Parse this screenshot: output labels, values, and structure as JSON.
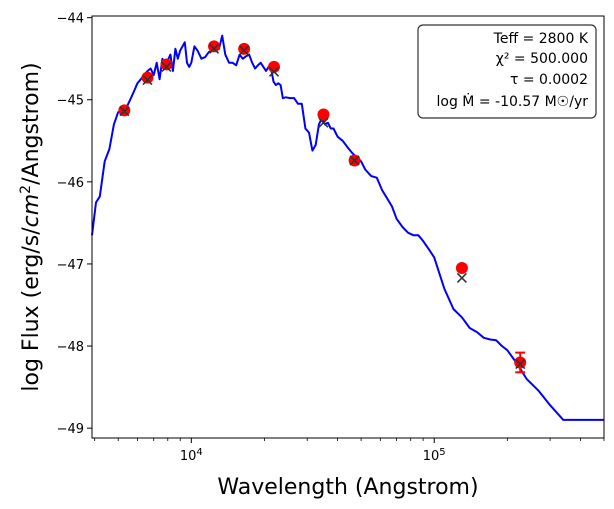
{
  "chart_data": {
    "type": "line",
    "xlabel": "Wavelength (Angstrom)",
    "ylabel": "log Flux (erg/s/cm^2/Angstrom)",
    "xscale": "log",
    "xlim": [
      3900,
      500000
    ],
    "ylim": [
      -49.12,
      -43.98
    ],
    "x_ticks": [
      {
        "value": 10000,
        "label": "10^4"
      },
      {
        "value": 100000,
        "label": "10^5"
      }
    ],
    "y_ticks": [
      -49,
      -48,
      -47,
      -46,
      -45,
      -44
    ],
    "annotation": {
      "teff": "Teff = 2800 K",
      "chi2": "χ² = 500.000",
      "tau": "τ = 0.0002",
      "mdot": "log Ṁ = -10.57 M☉/yr"
    },
    "series": [
      {
        "name": "model spectrum",
        "kind": "line",
        "color": "#0000ff",
        "x": [
          3900,
          4050,
          4200,
          4400,
          4600,
          4800,
          5000,
          5200,
          5400,
          5600,
          5800,
          6000,
          6200,
          6400,
          6600,
          6800,
          7000,
          7200,
          7400,
          7600,
          7800,
          8000,
          8200,
          8400,
          8600,
          8800,
          9000,
          9200,
          9400,
          9600,
          9800,
          10000,
          10300,
          10600,
          11000,
          11400,
          11800,
          12200,
          12600,
          13000,
          13400,
          13800,
          14300,
          14800,
          15300,
          15800,
          16300,
          16800,
          17300,
          17800,
          18300,
          18800,
          19300,
          19800,
          20300,
          20800,
          21300,
          21800,
          22300,
          22800,
          23300,
          23800,
          24500,
          25500,
          26500,
          27500,
          28500,
          29500,
          30500,
          31500,
          32500,
          33500,
          34500,
          35500,
          36500,
          37500,
          38500,
          40000,
          42000,
          44000,
          46000,
          48000,
          50000,
          52000,
          55000,
          58000,
          61000,
          64000,
          67000,
          70000,
          74000,
          78000,
          82000,
          86000,
          90000,
          95000,
          100000,
          110000,
          120000,
          130000,
          140000,
          150000,
          160000,
          170000,
          180000,
          190000,
          200000,
          220000,
          240000,
          270000,
          300000,
          340000,
          380000,
          430000,
          500000
        ],
        "y": [
          -46.65,
          -46.25,
          -46.18,
          -45.75,
          -45.6,
          -45.3,
          -45.15,
          -45.15,
          -45.1,
          -45.0,
          -44.9,
          -44.8,
          -44.75,
          -44.7,
          -44.65,
          -44.62,
          -44.7,
          -44.55,
          -44.75,
          -44.5,
          -44.6,
          -44.52,
          -44.45,
          -44.65,
          -44.38,
          -44.5,
          -44.4,
          -44.35,
          -44.3,
          -44.55,
          -44.6,
          -44.55,
          -44.35,
          -44.4,
          -44.5,
          -44.48,
          -44.42,
          -44.4,
          -44.35,
          -44.38,
          -44.22,
          -44.45,
          -44.55,
          -44.55,
          -44.58,
          -44.45,
          -44.5,
          -44.47,
          -44.45,
          -44.55,
          -44.62,
          -44.58,
          -44.55,
          -44.6,
          -44.65,
          -44.6,
          -44.62,
          -44.78,
          -44.82,
          -44.8,
          -44.82,
          -44.98,
          -44.97,
          -44.98,
          -44.98,
          -45.05,
          -45.05,
          -45.35,
          -45.4,
          -45.62,
          -45.55,
          -45.3,
          -45.22,
          -45.3,
          -45.28,
          -45.35,
          -45.35,
          -45.45,
          -45.5,
          -45.58,
          -45.65,
          -45.7,
          -45.75,
          -45.85,
          -45.93,
          -45.95,
          -46.1,
          -46.2,
          -46.3,
          -46.45,
          -46.55,
          -46.62,
          -46.65,
          -46.65,
          -46.72,
          -46.82,
          -46.92,
          -47.3,
          -47.55,
          -47.65,
          -47.78,
          -47.83,
          -47.9,
          -47.92,
          -47.93,
          -48.0,
          -48.05,
          -48.22,
          -48.4,
          -48.55,
          -48.72,
          -48.9,
          -48.9,
          -48.9,
          -48.9
        ]
      },
      {
        "name": "observed photometry",
        "kind": "points",
        "color": "#ff0000",
        "x": [
          5300,
          6600,
          7900,
          12400,
          16500,
          21900,
          35000,
          47000,
          130000,
          226000
        ],
        "y": [
          -45.13,
          -44.73,
          -44.57,
          -44.35,
          -44.38,
          -44.6,
          -45.18,
          -45.74,
          -47.05,
          -48.2
        ],
        "yerr": [
          0,
          0,
          0,
          0,
          0,
          0,
          0,
          0,
          0,
          0.12
        ]
      },
      {
        "name": "model photometry",
        "kind": "x-markers",
        "color": "#333333",
        "x": [
          5300,
          6600,
          7900,
          12400,
          16500,
          21900,
          35000,
          47000,
          130000,
          226000
        ],
        "y": [
          -45.14,
          -44.76,
          -44.6,
          -44.38,
          -44.4,
          -44.66,
          -45.28,
          -45.74,
          -47.17,
          -48.22
        ]
      }
    ]
  }
}
